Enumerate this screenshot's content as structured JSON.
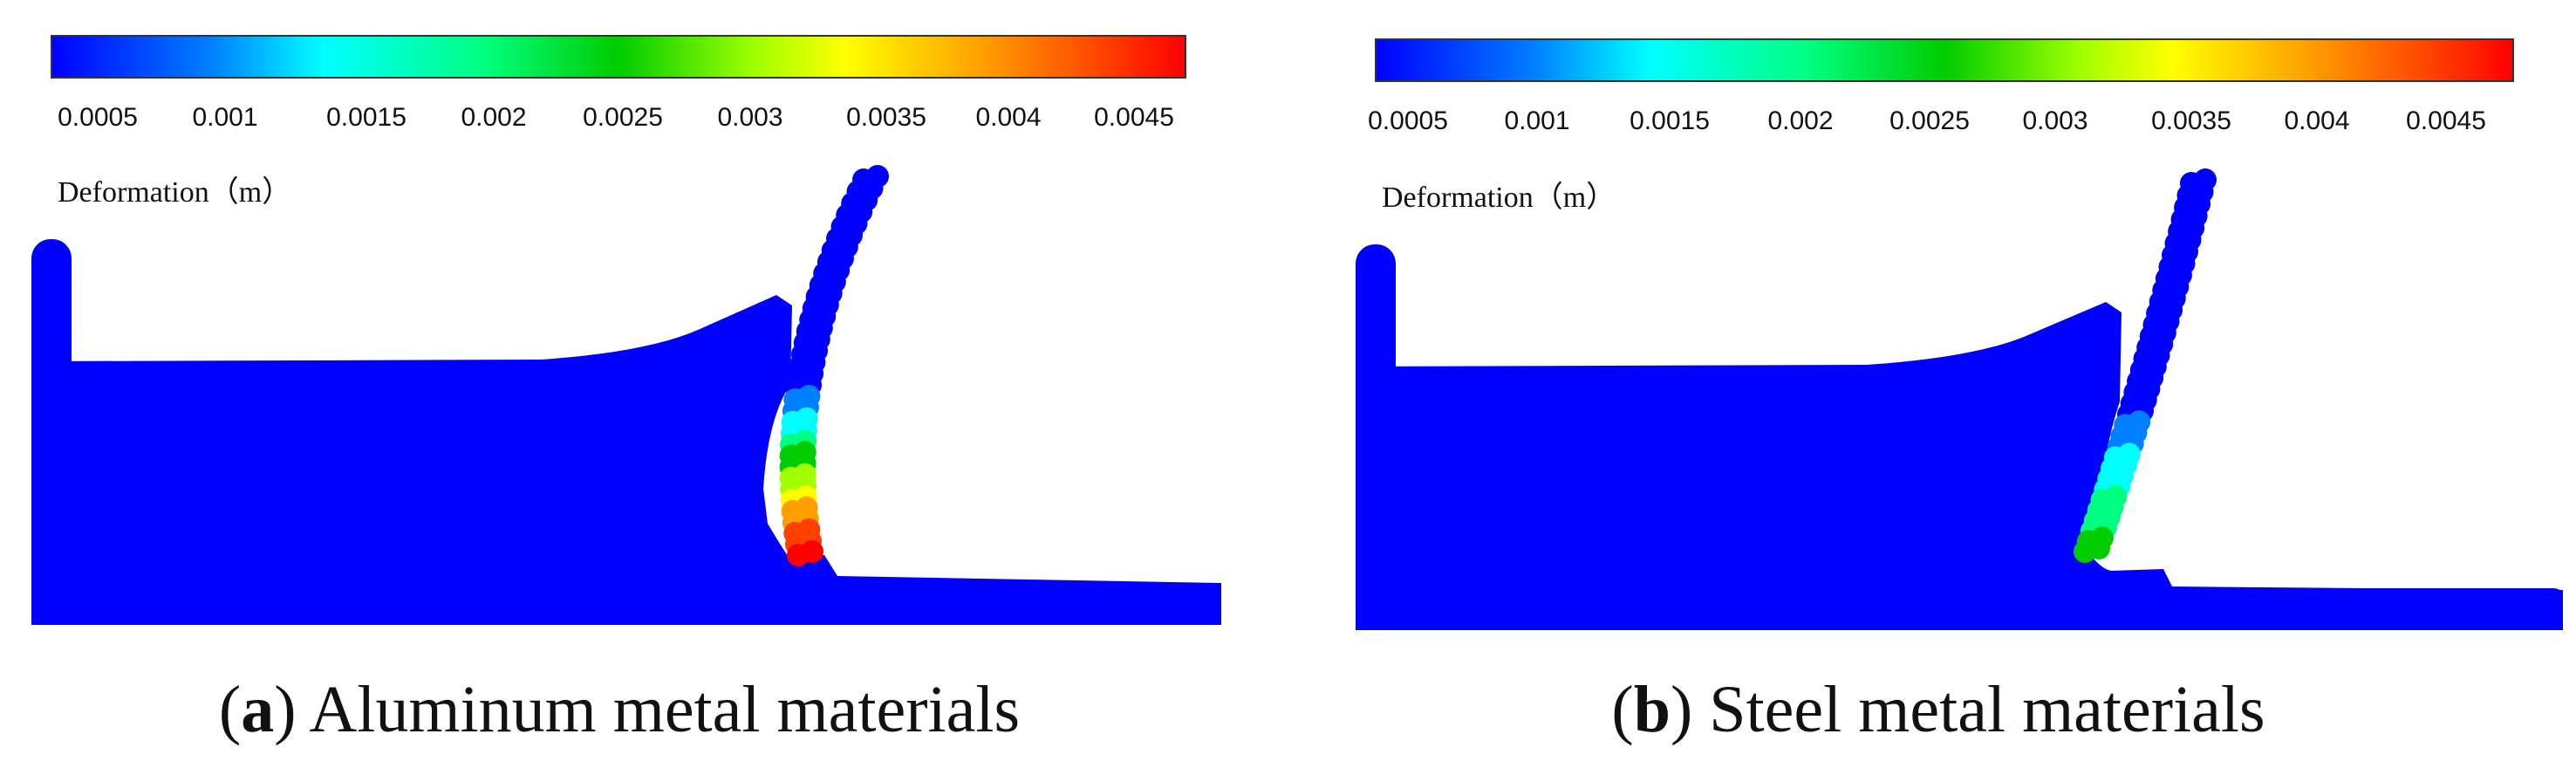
{
  "colors": {
    "fluid": "#0000ff",
    "scale": [
      "#0000ff",
      "#0080ff",
      "#00ffff",
      "#00ff80",
      "#00cc00",
      "#a0ff00",
      "#ffff00",
      "#ffa000",
      "#ff4000",
      "#ff0000"
    ]
  },
  "panels": [
    {
      "id": "a",
      "legend_title": "Deformation（m）",
      "ticks": [
        "0.0005",
        "0.001",
        "0.0015",
        "0.002",
        "0.0025",
        "0.003",
        "0.0035",
        "0.004",
        "0.0045"
      ],
      "caption_letter": "a",
      "caption_text": " Aluminum metal materials",
      "max_deformation_color": "#ff0000"
    },
    {
      "id": "b",
      "legend_title": "Deformation（m）",
      "ticks": [
        "0.0005",
        "0.001",
        "0.0015",
        "0.002",
        "0.0025",
        "0.003",
        "0.0035",
        "0.004",
        "0.0045"
      ],
      "caption_letter": "b",
      "caption_text": " Steel metal materials",
      "max_deformation_color": "#00cc00"
    }
  ]
}
